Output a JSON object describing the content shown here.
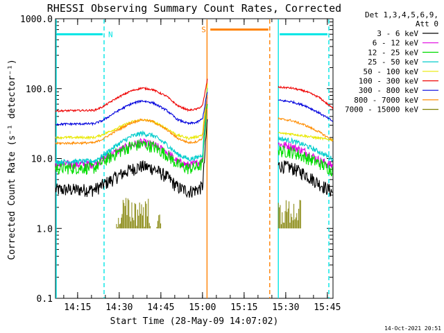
{
  "chart_data": {
    "type": "line",
    "title": "RHESSI Observing Summary Count Rates, Corrected",
    "xlabel": "Start Time (28-May-09 14:07:02)",
    "ylabel": "Corrected Count Rate (s⁻¹ detector⁻¹)",
    "yscale": "log",
    "ylim": [
      0.1,
      1000
    ],
    "xlim_minutes_after_start": [
      0,
      100
    ],
    "x_ticks": [
      {
        "label": "14:15",
        "m": 7.97
      },
      {
        "label": "14:30",
        "m": 22.97
      },
      {
        "label": "14:45",
        "m": 37.97
      },
      {
        "label": "15:00",
        "m": 52.97
      },
      {
        "label": "15:15",
        "m": 67.97
      },
      {
        "label": "15:30",
        "m": 82.97
      },
      {
        "label": "15:45",
        "m": 97.97
      }
    ],
    "y_ticks": [
      {
        "label": "1000.0",
        "v": 1000
      },
      {
        "label": "100.0",
        "v": 100
      },
      {
        "label": "10.0",
        "v": 10
      },
      {
        "label": "1.0",
        "v": 1
      },
      {
        "label": "0.1",
        "v": 0.1
      }
    ],
    "legend": {
      "header": [
        "Det 1,3,4,5,6,9,",
        "Att 0"
      ],
      "placement": "right of plot"
    },
    "segments_minutes": [
      [
        0,
        54.8
      ],
      [
        80.3,
        100
      ]
    ],
    "series": [
      {
        "name": "3 - 6 keV",
        "color": "#000000",
        "points": [
          [
            0,
            3.6
          ],
          [
            14,
            3.6
          ],
          [
            17,
            4.2
          ],
          [
            22,
            5.5
          ],
          [
            27,
            7.0
          ],
          [
            31,
            7.8
          ],
          [
            35,
            7.3
          ],
          [
            40,
            5.6
          ],
          [
            44,
            3.9
          ],
          [
            48,
            3.4
          ],
          [
            51,
            3.6
          ],
          [
            53,
            4.0
          ],
          [
            54.8,
            40
          ],
          [
            80.3,
            8.0
          ],
          [
            85,
            7.4
          ],
          [
            90,
            6.0
          ],
          [
            95,
            4.4
          ],
          [
            100,
            3.3
          ]
        ]
      },
      {
        "name": "6 - 12 keV",
        "color": "#e000e0",
        "points": [
          [
            0,
            8.3
          ],
          [
            14,
            8.3
          ],
          [
            17,
            9.8
          ],
          [
            22,
            12.5
          ],
          [
            27,
            15.5
          ],
          [
            31,
            17
          ],
          [
            35,
            16
          ],
          [
            40,
            12.5
          ],
          [
            44,
            9.0
          ],
          [
            48,
            8.0
          ],
          [
            51,
            8.5
          ],
          [
            53,
            9.5
          ],
          [
            54.8,
            90
          ],
          [
            80.3,
            16
          ],
          [
            85,
            15
          ],
          [
            90,
            12.5
          ],
          [
            95,
            9.5
          ],
          [
            100,
            7.8
          ]
        ]
      },
      {
        "name": "12 - 25 keV",
        "color": "#00dd00",
        "points": [
          [
            0,
            7.3
          ],
          [
            14,
            7.4
          ],
          [
            17,
            9.0
          ],
          [
            22,
            12
          ],
          [
            27,
            15
          ],
          [
            31,
            16
          ],
          [
            35,
            15
          ],
          [
            40,
            11.5
          ],
          [
            44,
            8.2
          ],
          [
            48,
            7.2
          ],
          [
            51,
            7.6
          ],
          [
            53,
            8.4
          ],
          [
            54.8,
            80
          ],
          [
            80.3,
            13
          ],
          [
            85,
            12.5
          ],
          [
            90,
            10.5
          ],
          [
            95,
            8.6
          ],
          [
            100,
            6.8
          ]
        ]
      },
      {
        "name": "25 - 50 keV",
        "color": "#00cccc",
        "points": [
          [
            0,
            9.0
          ],
          [
            14,
            9.2
          ],
          [
            17,
            11
          ],
          [
            22,
            15.5
          ],
          [
            27,
            20.5
          ],
          [
            31,
            23
          ],
          [
            35,
            21.5
          ],
          [
            40,
            16
          ],
          [
            44,
            11.5
          ],
          [
            48,
            9.8
          ],
          [
            51,
            10.3
          ],
          [
            53,
            11.5
          ],
          [
            54.8,
            110
          ],
          [
            80.3,
            19.5
          ],
          [
            85,
            18
          ],
          [
            90,
            15.5
          ],
          [
            95,
            12.5
          ],
          [
            100,
            9.8
          ]
        ]
      },
      {
        "name": "50 - 100 keV",
        "color": "#e8e800",
        "points": [
          [
            0,
            20
          ],
          [
            14,
            20
          ],
          [
            17,
            22
          ],
          [
            22,
            27
          ],
          [
            27,
            33
          ],
          [
            31,
            36
          ],
          [
            35,
            34
          ],
          [
            40,
            27
          ],
          [
            44,
            21.5
          ],
          [
            48,
            19.5
          ],
          [
            51,
            20.5
          ],
          [
            53,
            22
          ],
          [
            54.8,
            130
          ],
          [
            80.3,
            23
          ],
          [
            85,
            22.5
          ],
          [
            90,
            21
          ],
          [
            95,
            19.5
          ],
          [
            100,
            18.5
          ]
        ]
      },
      {
        "name": "100 - 300 keV",
        "color": "#ee0000",
        "points": [
          [
            0,
            48
          ],
          [
            14,
            49
          ],
          [
            17,
            55
          ],
          [
            22,
            73
          ],
          [
            27,
            92
          ],
          [
            31,
            102
          ],
          [
            35,
            97
          ],
          [
            40,
            78
          ],
          [
            44,
            57
          ],
          [
            48,
            49
          ],
          [
            51,
            51
          ],
          [
            53,
            57
          ],
          [
            54.8,
            140
          ],
          [
            80.3,
            105
          ],
          [
            85,
            102
          ],
          [
            90,
            92
          ],
          [
            95,
            75
          ],
          [
            100,
            52
          ]
        ]
      },
      {
        "name": "300 - 800 keV",
        "color": "#0000dd",
        "points": [
          [
            0,
            31
          ],
          [
            14,
            31.5
          ],
          [
            17,
            35
          ],
          [
            22,
            47
          ],
          [
            27,
            60
          ],
          [
            31,
            67
          ],
          [
            35,
            63
          ],
          [
            40,
            49
          ],
          [
            44,
            36
          ],
          [
            48,
            31.5
          ],
          [
            51,
            33
          ],
          [
            53,
            37
          ],
          [
            54.8,
            95
          ],
          [
            80.3,
            68
          ],
          [
            85,
            65
          ],
          [
            90,
            57
          ],
          [
            95,
            45
          ],
          [
            100,
            34
          ]
        ]
      },
      {
        "name": "800 - 7000 keV",
        "color": "#ff8c00",
        "points": [
          [
            0,
            16.5
          ],
          [
            14,
            16.8
          ],
          [
            17,
            19
          ],
          [
            22,
            25
          ],
          [
            27,
            32
          ],
          [
            31,
            36
          ],
          [
            35,
            34
          ],
          [
            40,
            26
          ],
          [
            44,
            19.5
          ],
          [
            48,
            16.8
          ],
          [
            51,
            17.5
          ],
          [
            53,
            19.5
          ],
          [
            54.8,
            85
          ],
          [
            80.3,
            37
          ],
          [
            85,
            35
          ],
          [
            90,
            30
          ],
          [
            95,
            24
          ],
          [
            100,
            18
          ]
        ]
      },
      {
        "name": "7000 - 15000 keV",
        "color": "#808000",
        "sparse": true,
        "ranges": [
          [
            0,
            null
          ]
        ],
        "blocks": [
          {
            "from": 22,
            "to": 24,
            "hi": 1.5,
            "lo": 1.0
          },
          {
            "from": 24,
            "to": 34.5,
            "hi": 2.8,
            "lo": 1.0
          },
          {
            "from": 36.5,
            "to": 38,
            "hi": 1.6,
            "lo": 1.0
          },
          {
            "from": 80.3,
            "to": 88.5,
            "hi": 2.6,
            "lo": 1.0
          }
        ],
        "points": []
      }
    ],
    "flag_bars": [
      {
        "label": "N",
        "color": "#00e5e5",
        "from": 0,
        "to": 17.5,
        "value": 600
      },
      {
        "label": "",
        "color": "#00e5e5",
        "from": 80.3,
        "to": 98.5,
        "value": 600
      },
      {
        "label": "S",
        "color": "#ff8000",
        "from": 55.3,
        "to": 77.2,
        "value": 700
      }
    ],
    "vertical_lines": [
      {
        "m": 0,
        "color": "#00e5e5",
        "style": "solid"
      },
      {
        "m": 17.5,
        "color": "#00e5e5",
        "style": "dashed"
      },
      {
        "m": 54.6,
        "color": "#ff8000",
        "style": "solid"
      },
      {
        "m": 77.2,
        "color": "#ff8000",
        "style": "dashed"
      },
      {
        "m": 80.3,
        "color": "#00e5e5",
        "style": "solid"
      },
      {
        "m": 98.5,
        "color": "#00e5e5",
        "style": "dashed"
      }
    ]
  },
  "footer": {
    "timestamp": "14-Oct-2021 20:51"
  }
}
